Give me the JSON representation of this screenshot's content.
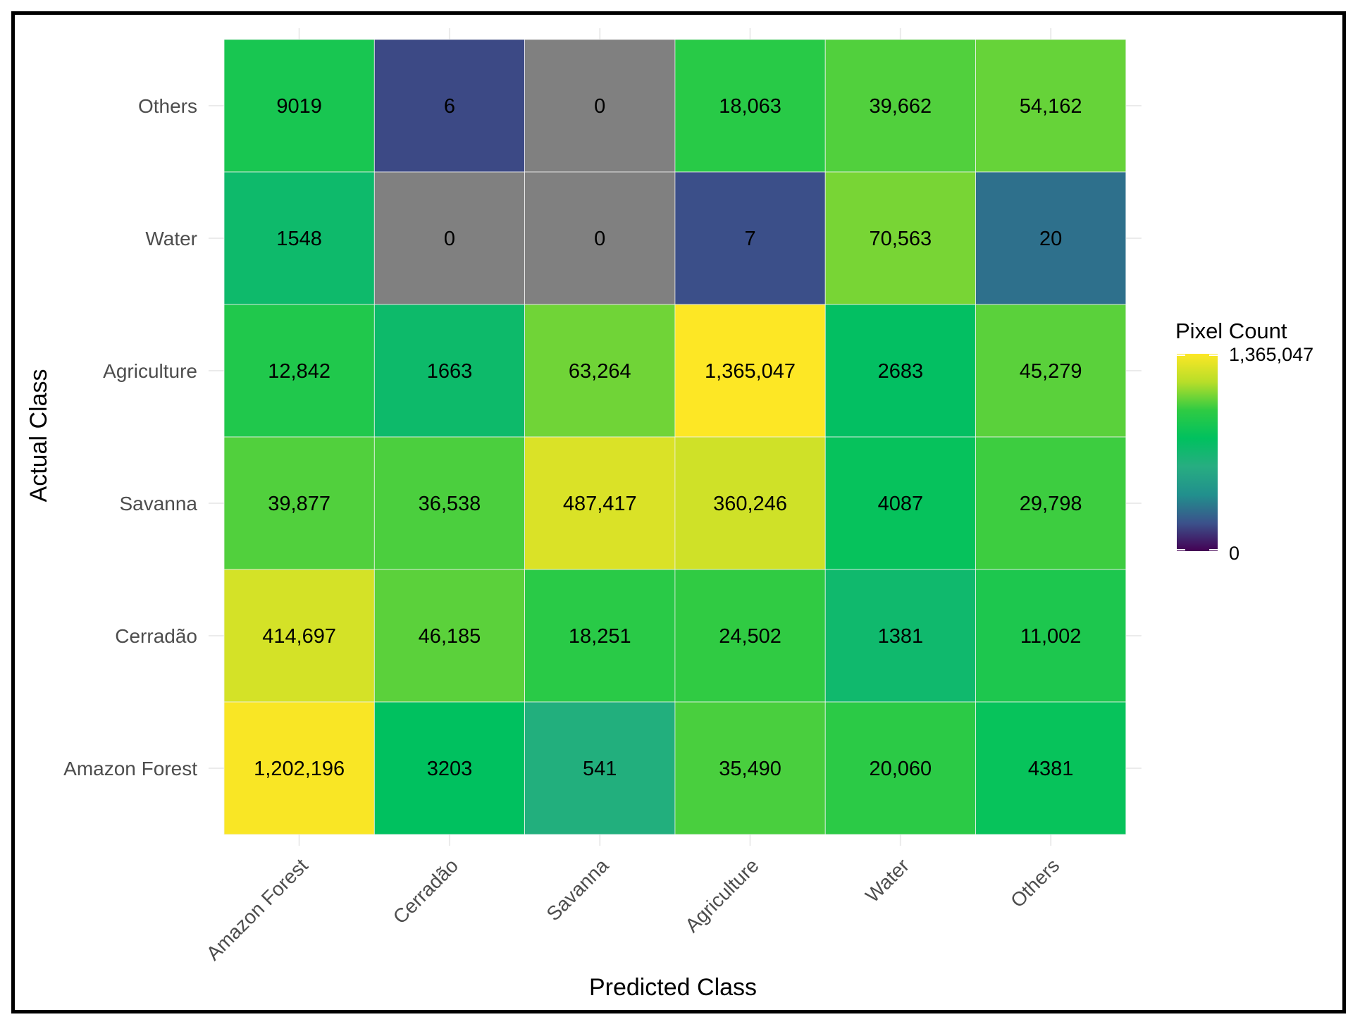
{
  "chart_data": {
    "type": "heatmap",
    "title": "",
    "xlabel": "Predicted Class",
    "ylabel": "Actual Class",
    "x_categories": [
      "Amazon Forest",
      "Cerradão",
      "Savanna",
      "Agriculture",
      "Water",
      "Others"
    ],
    "y_categories": [
      "Amazon Forest",
      "Cerradão",
      "Savanna",
      "Agriculture",
      "Water",
      "Others"
    ],
    "rows": [
      {
        "actual": "Others",
        "values": [
          9019,
          6,
          0,
          18063,
          39662,
          54162
        ],
        "labels": [
          "9019",
          "6",
          "0",
          "18,063",
          "39,662",
          "54,162"
        ]
      },
      {
        "actual": "Water",
        "values": [
          1548,
          0,
          0,
          7,
          70563,
          20
        ],
        "labels": [
          "1548",
          "0",
          "0",
          "7",
          "70,563",
          "20"
        ]
      },
      {
        "actual": "Agriculture",
        "values": [
          12842,
          1663,
          63264,
          1365047,
          2683,
          45279
        ],
        "labels": [
          "12,842",
          "1663",
          "63,264",
          "1,365,047",
          "2683",
          "45,279"
        ]
      },
      {
        "actual": "Savanna",
        "values": [
          39877,
          36538,
          487417,
          360246,
          4087,
          29798
        ],
        "labels": [
          "39,877",
          "36,538",
          "487,417",
          "360,246",
          "4087",
          "29,798"
        ]
      },
      {
        "actual": "Cerradão",
        "values": [
          414697,
          46185,
          18251,
          24502,
          1381,
          11002
        ],
        "labels": [
          "414,697",
          "46,185",
          "18,251",
          "24,502",
          "1381",
          "11,002"
        ]
      },
      {
        "actual": "Amazon Forest",
        "values": [
          1202196,
          3203,
          541,
          35490,
          20060,
          4381
        ],
        "labels": [
          "1,202,196",
          "3203",
          "541",
          "35,490",
          "20,060",
          "4381"
        ]
      }
    ],
    "legend": {
      "title": "Pixel Count",
      "max_label": "1,365,047",
      "min_label": "0",
      "min": 0,
      "max": 1365047,
      "scale": "log",
      "zero_color": "#808080",
      "colors": [
        "#440154",
        "#3b528b",
        "#21908d",
        "#27ad81",
        "#00c15f",
        "#2fcb43",
        "#b8de29",
        "#fde725"
      ]
    }
  }
}
